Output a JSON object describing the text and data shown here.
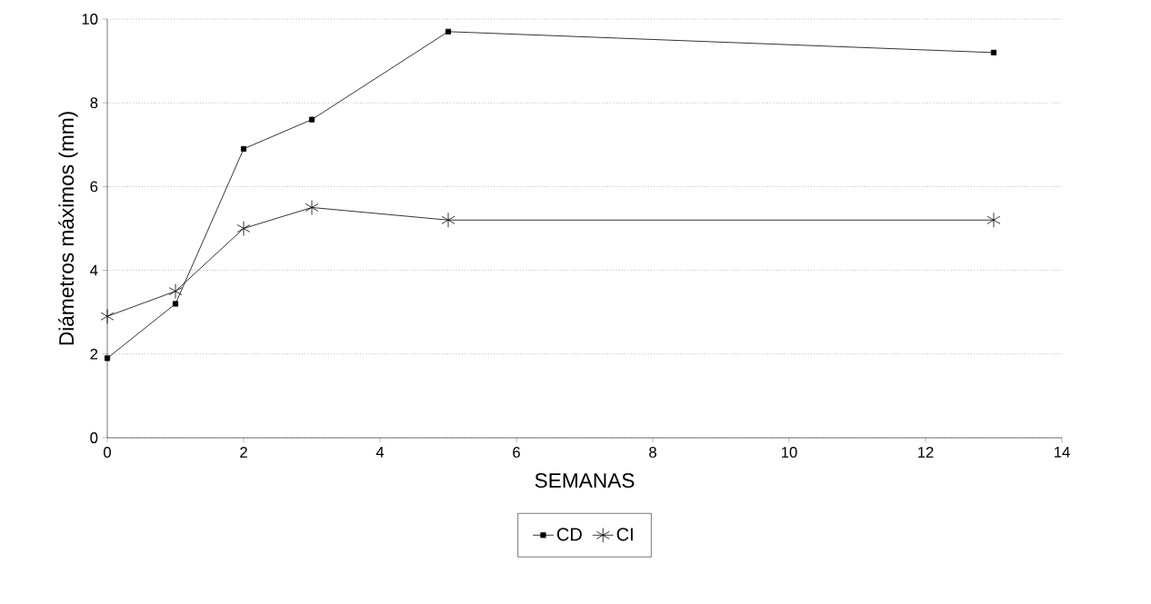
{
  "chart_data": {
    "type": "line",
    "xlabel": "SEMANAS",
    "ylabel": "Diámetros máximos (mm)",
    "x": [
      0,
      1,
      2,
      3,
      5,
      13
    ],
    "series": [
      {
        "name": "CD",
        "color": "#000000",
        "marker": "square",
        "values": [
          1.9,
          3.2,
          6.9,
          7.6,
          9.7,
          9.2
        ]
      },
      {
        "name": "CI",
        "color": "#000000",
        "marker": "cross",
        "values": [
          2.9,
          3.5,
          5.0,
          5.5,
          5.2,
          5.2
        ]
      }
    ],
    "xlim": [
      0,
      14
    ],
    "ylim": [
      0,
      10
    ],
    "xticks": [
      0,
      2,
      4,
      6,
      8,
      10,
      12,
      14
    ],
    "yticks": [
      0,
      2,
      4,
      6,
      8,
      10
    ],
    "grid": "y",
    "legend": "bottom"
  }
}
